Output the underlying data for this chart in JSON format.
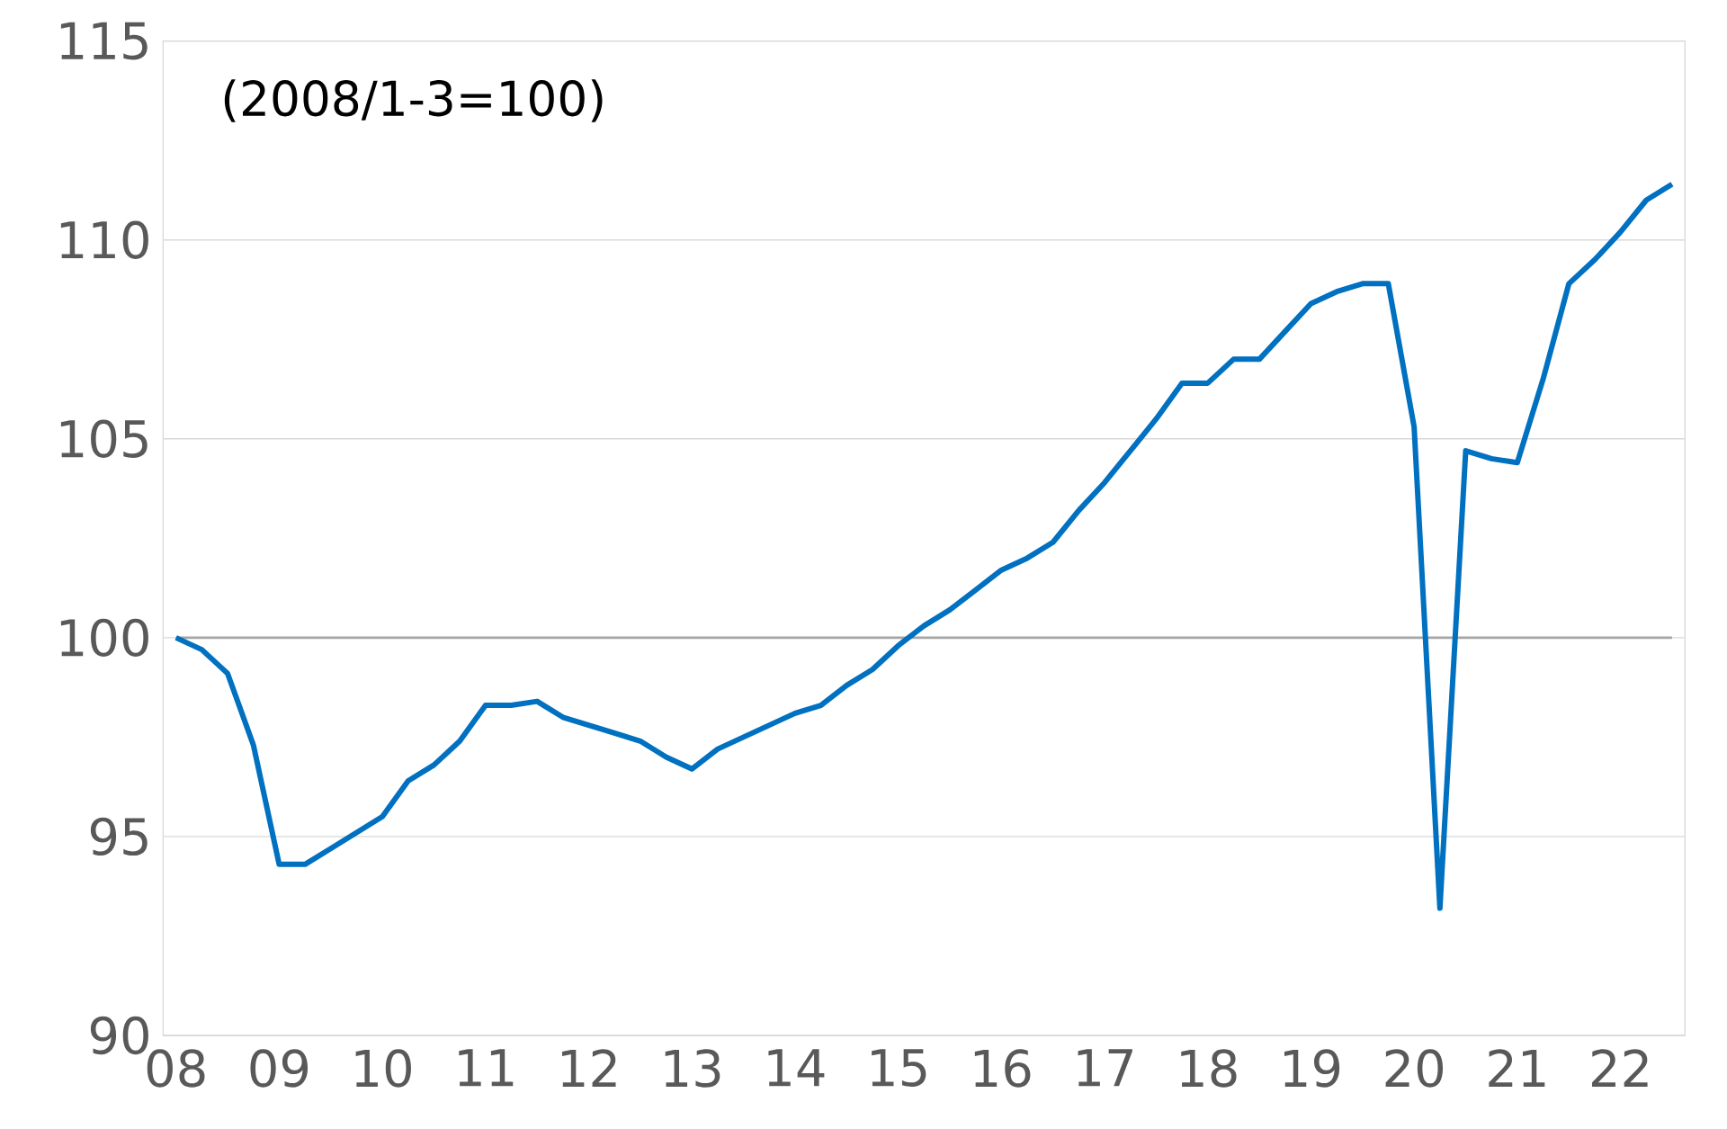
{
  "chart_data": {
    "type": "line",
    "categories": [
      "08",
      null,
      null,
      null,
      "09",
      null,
      null,
      null,
      "10",
      null,
      null,
      null,
      "11",
      null,
      null,
      null,
      "12",
      null,
      null,
      null,
      "13",
      null,
      null,
      null,
      "14",
      null,
      null,
      null,
      "15",
      null,
      null,
      null,
      "16",
      null,
      null,
      null,
      "17",
      null,
      null,
      null,
      "18",
      null,
      null,
      null,
      "19",
      null,
      null,
      null,
      "20",
      null,
      null,
      null,
      "21",
      null,
      null,
      null,
      "22",
      null,
      null
    ],
    "series": [
      {
        "color": "#0070c0",
        "values": [
          100.0,
          99.7,
          99.1,
          97.3,
          94.3,
          94.3,
          94.7,
          95.1,
          95.5,
          96.4,
          96.8,
          97.4,
          98.3,
          98.3,
          98.4,
          98.0,
          97.8,
          97.6,
          97.4,
          97.0,
          96.7,
          97.2,
          97.5,
          97.8,
          98.1,
          98.3,
          98.8,
          99.2,
          99.8,
          100.3,
          100.7,
          101.2,
          101.7,
          102.0,
          102.4,
          103.2,
          103.9,
          104.7,
          105.5,
          106.4,
          106.4,
          107.0,
          107.0,
          107.7,
          108.4,
          108.7,
          108.9,
          108.9,
          105.3,
          93.2,
          104.7,
          104.5,
          104.4,
          106.5,
          108.9,
          109.5,
          110.2,
          111.0,
          111.4
        ]
      }
    ],
    "ylim": [
      90,
      115
    ],
    "yticks": [
      90,
      95,
      100,
      105,
      110,
      115
    ],
    "grid": "y",
    "ref_lines": [
      {
        "axis": "y",
        "value": 100,
        "color": "#a6a6a6"
      }
    ],
    "annotations": [
      "(2008/1-3=100)"
    ]
  }
}
